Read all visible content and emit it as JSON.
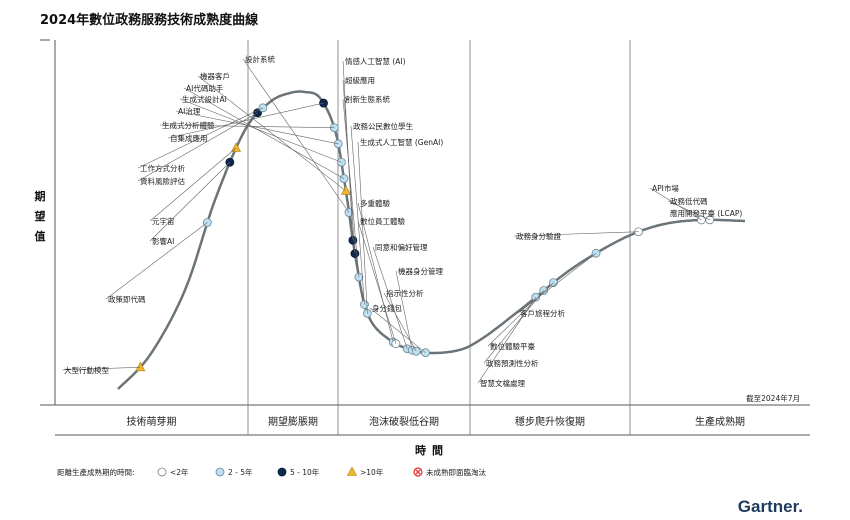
{
  "chart_data": {
    "type": "scatter",
    "title": "2024年數位政務服務技術成熟度曲線",
    "ylabel": "期望值",
    "xlabel": "時間",
    "as_of": "截至2024年7月",
    "phases": [
      "技術萌芽期",
      "期望膨脹期",
      "泡沫破裂低谷期",
      "穩步爬升恢復期",
      "生產成熟期"
    ],
    "legend_title": "距離生產成熟期的時間:",
    "legend": [
      {
        "key": "lt2",
        "label": "<2年",
        "color": "#ffffff"
      },
      {
        "key": "2to5",
        "label": "2 - 5年",
        "color": "#bfe0f2"
      },
      {
        "key": "5to10",
        "label": "5 - 10年",
        "color": "#10284d"
      },
      {
        "key": "gt10",
        "label": ">10年",
        "color": "#f2b632"
      },
      {
        "key": "obsolete",
        "label": "未成熟即面臨淘汰",
        "color": "#e03030"
      }
    ],
    "points": [
      {
        "label": "大型行動模型",
        "t": 0.03,
        "cat": "gt10"
      },
      {
        "label": "政策即代碼",
        "t": 0.185,
        "cat": "2to5"
      },
      {
        "label": "影響AI",
        "t": 0.247,
        "cat": "5to10"
      },
      {
        "label": "元宇宙",
        "t": 0.262,
        "cat": "gt10"
      },
      {
        "label": "資料風險評估",
        "t": 0.302,
        "cat": "5to10"
      },
      {
        "label": "工作方式分析",
        "t": 0.309,
        "cat": "2to5"
      },
      {
        "label": "自集成應用",
        "t": 0.376,
        "cat": "5to10"
      },
      {
        "label": "生成式分析體驗",
        "t": 0.402,
        "cat": "2to5"
      },
      {
        "label": "AI治理",
        "t": 0.418,
        "cat": "2to5"
      },
      {
        "label": "生成式設計AI",
        "t": 0.436,
        "cat": "2to5"
      },
      {
        "label": "AI代碼助手",
        "t": 0.452,
        "cat": "2to5"
      },
      {
        "label": "機器客戶",
        "t": 0.464,
        "cat": "gt10"
      },
      {
        "label": "設計系統",
        "t": 0.485,
        "cat": "2to5"
      },
      {
        "label": "情感人工智慧 (AI)",
        "t": 0.512,
        "cat": "5to10"
      },
      {
        "label": "超級應用",
        "t": 0.525,
        "cat": "5to10"
      },
      {
        "label": "創新生態系統",
        "t": 0.548,
        "cat": "2to5"
      },
      {
        "label": "政務公民數位學生",
        "t": 0.575,
        "cat": "2to5"
      },
      {
        "label": "生成式人工智慧 (GenAI)",
        "t": 0.584,
        "cat": "2to5"
      },
      {
        "label": "多重體驗",
        "t": 0.622,
        "cat": "2to5"
      },
      {
        "label": "數位員工體驗",
        "t": 0.625,
        "cat": "lt2"
      },
      {
        "label": "同意和偏好管理",
        "t": 0.637,
        "cat": "2to5"
      },
      {
        "label": "機器身分管理",
        "t": 0.642,
        "cat": "2to5"
      },
      {
        "label": "指示性分析",
        "t": 0.646,
        "cat": "2to5"
      },
      {
        "label": "身分錢包",
        "t": 0.655,
        "cat": "2to5"
      },
      {
        "label": "智慧文檔處理",
        "t": 0.778,
        "cat": "2to5"
      },
      {
        "label": "政務預測性分析",
        "t": 0.788,
        "cat": "2to5"
      },
      {
        "label": "數位體驗平臺",
        "t": 0.8,
        "cat": "2to5"
      },
      {
        "label": "客戶旅程分析",
        "t": 0.85,
        "cat": "2to5"
      },
      {
        "label": "政務身分驗證",
        "t": 0.896,
        "cat": "lt2"
      },
      {
        "label": "API市場",
        "t": 0.958,
        "cat": "lt2"
      },
      {
        "label": "政務低代碼應用開發平臺 (LCAP)",
        "t": 0.966,
        "cat": "lt2"
      }
    ]
  },
  "brand": "Gartner."
}
